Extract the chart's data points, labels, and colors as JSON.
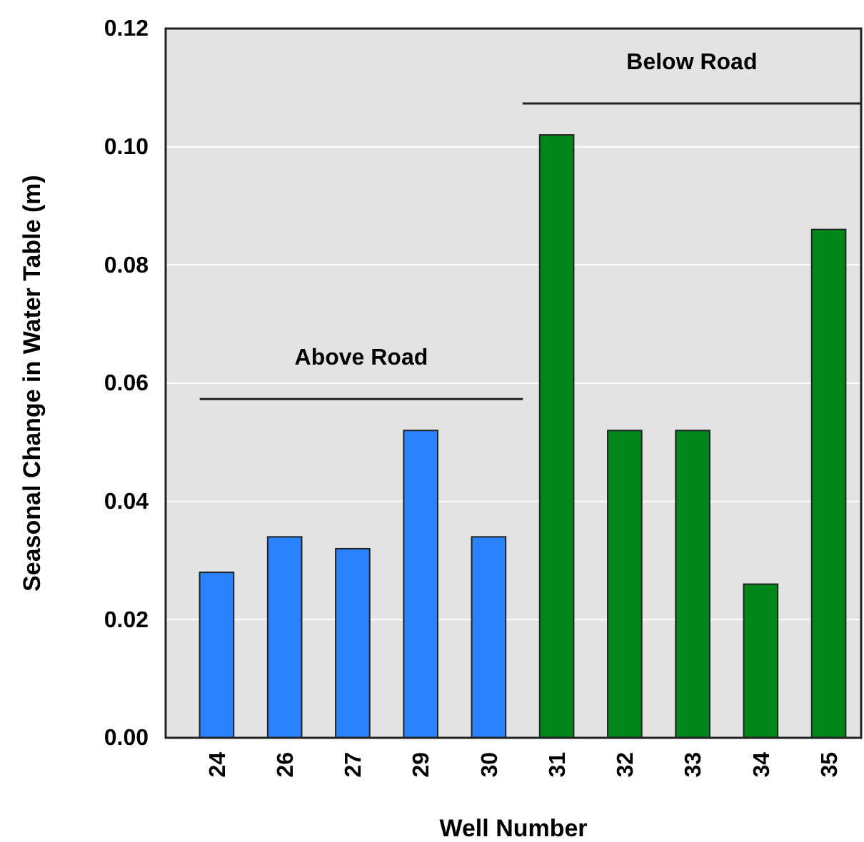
{
  "chart_data": {
    "type": "bar",
    "xlabel": "Well Number",
    "ylabel": "Seasonal Change in Water Table (m)",
    "categories": [
      "24",
      "26",
      "27",
      "29",
      "30",
      "31",
      "32",
      "33",
      "34",
      "35"
    ],
    "values": [
      0.028,
      0.034,
      0.032,
      0.052,
      0.034,
      0.102,
      0.052,
      0.052,
      0.026,
      0.086
    ],
    "colors": [
      "#2a82ff",
      "#2a82ff",
      "#2a82ff",
      "#2a82ff",
      "#2a82ff",
      "#00871a",
      "#00871a",
      "#00871a",
      "#00871a",
      "#00871a"
    ],
    "ylim": [
      0,
      0.12
    ],
    "yticks": [
      {
        "value": 0,
        "label": "0.00"
      },
      {
        "value": 0.02,
        "label": "0.02"
      },
      {
        "value": 0.04,
        "label": "0.04"
      },
      {
        "value": 0.06,
        "label": "0.06"
      },
      {
        "value": 0.08,
        "label": "0.08"
      },
      {
        "value": 0.1,
        "label": "0.10"
      },
      {
        "value": 0.12,
        "label": "0.12"
      }
    ],
    "grid": "y",
    "annotations": [
      "Above Road",
      "Below Road"
    ]
  }
}
